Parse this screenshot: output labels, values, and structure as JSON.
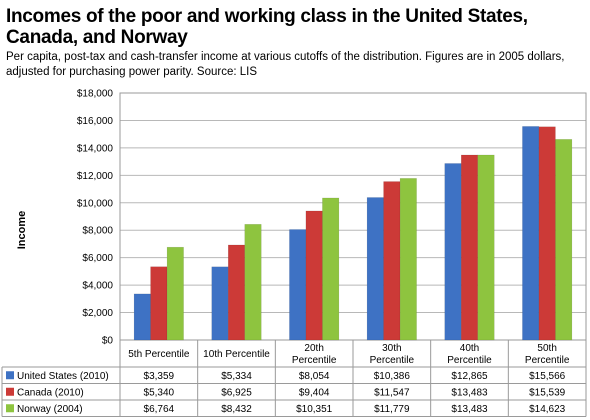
{
  "title": "Incomes of the poor and working class in the United States, Canada, and Norway",
  "subtitle": "Per capita, post-tax and cash-transfer income at various cutoffs of the distribution. Figures are in 2005 dollars, adjusted for purchasing power parity. Source: LIS",
  "chart_data": {
    "type": "bar",
    "title": "Incomes of the poor and working class in the United States, Canada, and Norway",
    "ylabel": "Income",
    "xlabel": "",
    "ylim": [
      0,
      18000
    ],
    "yticks": [
      0,
      2000,
      4000,
      6000,
      8000,
      10000,
      12000,
      14000,
      16000,
      18000
    ],
    "ytick_labels": [
      "$0",
      "$2,000",
      "$4,000",
      "$6,000",
      "$8,000",
      "$10,000",
      "$12,000",
      "$14,000",
      "$16,000",
      "$18,000"
    ],
    "grid": true,
    "legend": "table-below",
    "categories": [
      "5th Percentile",
      "10th Percentile",
      "20th Percentile",
      "30th Percentile",
      "40th Percentile",
      "50th Percentile"
    ],
    "series": [
      {
        "name": "United States (2010)",
        "color": "#3e72c4",
        "values": [
          3359,
          5334,
          8054,
          10386,
          12865,
          15566
        ],
        "labels": [
          "$3,359",
          "$5,334",
          "$8,054",
          "$10,386",
          "$12,865",
          "$15,566"
        ]
      },
      {
        "name": "Canada (2010)",
        "color": "#cc3a37",
        "values": [
          5340,
          6925,
          9404,
          11547,
          13483,
          15539
        ],
        "labels": [
          "$5,340",
          "$6,925",
          "$9,404",
          "$11,547",
          "$13,483",
          "$15,539"
        ]
      },
      {
        "name": "Norway (2004)",
        "color": "#8ec43f",
        "values": [
          6764,
          8432,
          10351,
          11779,
          13483,
          14623
        ],
        "labels": [
          "$6,764",
          "$8,432",
          "$10,351",
          "$11,779",
          "$13,483",
          "$14,623"
        ]
      }
    ]
  }
}
